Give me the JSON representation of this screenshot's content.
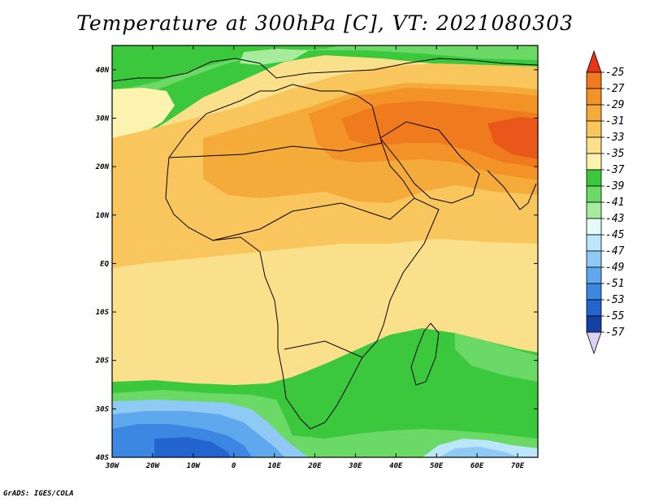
{
  "title": "Temperature at 300hPa [C], VT: 2021080303",
  "credit": "GrADS: IGES/COLA",
  "map": {
    "lon_range": [
      -30,
      75
    ],
    "lat_range": [
      -40,
      45
    ],
    "lat_ticks": [
      {
        "value": 40,
        "label": "40N"
      },
      {
        "value": 30,
        "label": "30N"
      },
      {
        "value": 20,
        "label": "20N"
      },
      {
        "value": 10,
        "label": "10N"
      },
      {
        "value": 0,
        "label": "EQ"
      },
      {
        "value": -10,
        "label": "10S"
      },
      {
        "value": -20,
        "label": "20S"
      },
      {
        "value": -30,
        "label": "30S"
      },
      {
        "value": -40,
        "label": "40S"
      }
    ],
    "lon_ticks": [
      {
        "value": -30,
        "label": "30W"
      },
      {
        "value": -20,
        "label": "20W"
      },
      {
        "value": -10,
        "label": "10W"
      },
      {
        "value": 0,
        "label": "0"
      },
      {
        "value": 10,
        "label": "10E"
      },
      {
        "value": 20,
        "label": "20E"
      },
      {
        "value": 30,
        "label": "30E"
      },
      {
        "value": 40,
        "label": "40E"
      },
      {
        "value": 50,
        "label": "50E"
      },
      {
        "value": 60,
        "label": "60E"
      },
      {
        "value": 70,
        "label": "70E"
      }
    ]
  },
  "colorbar": {
    "levels": [
      {
        "label": "-25",
        "color": "#f07a1e"
      },
      {
        "label": "-27",
        "color": "#f39226"
      },
      {
        "label": "-29",
        "color": "#f5ab3a"
      },
      {
        "label": "-31",
        "color": "#f8c65c"
      },
      {
        "label": "-33",
        "color": "#fbe08c"
      },
      {
        "label": "-35",
        "color": "#fdf3b0"
      },
      {
        "label": "-37",
        "color": "#3cc83c"
      },
      {
        "label": "-39",
        "color": "#6ad966"
      },
      {
        "label": "-41",
        "color": "#a6ec9c"
      },
      {
        "label": "-43",
        "color": "#e4fbf9"
      },
      {
        "label": "-45",
        "color": "#bce6fb"
      },
      {
        "label": "-47",
        "color": "#8ecaf4"
      },
      {
        "label": "-49",
        "color": "#5fa8ee"
      },
      {
        "label": "-51",
        "color": "#3c87e2"
      },
      {
        "label": "-53",
        "color": "#2464cf"
      },
      {
        "label": "-55",
        "color": "#1541a6"
      },
      {
        "label": "-57",
        "color": "#0c1f6e"
      }
    ],
    "top_color": "#e63414",
    "bottom_color": "#dcd2f5"
  }
}
